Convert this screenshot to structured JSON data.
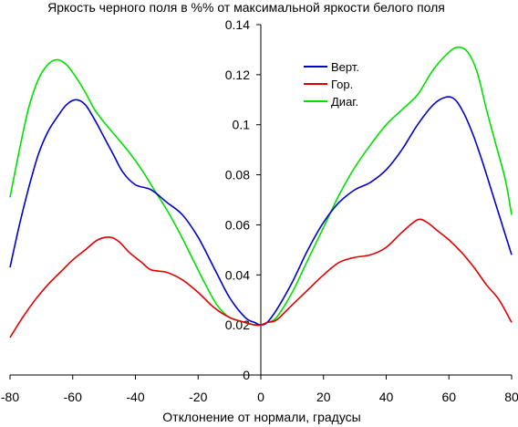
{
  "chart_data": {
    "type": "line",
    "title": "Яркость черного поля в %% от максимальной яркости белого поля",
    "xlabel": "Отклонение от нормали, градусы",
    "ylabel": "",
    "xlim": [
      -80,
      80
    ],
    "ylim": [
      0,
      0.14
    ],
    "xticks": [
      "-80",
      "-60",
      "-40",
      "-20",
      "0",
      "20",
      "40",
      "60",
      "80"
    ],
    "yticks": [
      "0",
      "0.02",
      "0.04",
      "0.06",
      "0.08",
      "0.1",
      "0.12",
      "0.14"
    ],
    "grid": false,
    "legend_position": "top-right",
    "series": [
      {
        "name": "Верт.",
        "color": "#0000cc",
        "x": [
          -80,
          -77,
          -74,
          -71,
          -68,
          -65,
          -62,
          -59,
          -56,
          -53,
          -50,
          -47,
          -44,
          -40,
          -35,
          -30,
          -25,
          -20,
          -15,
          -10,
          -5,
          -2,
          0,
          2,
          5,
          10,
          15,
          20,
          25,
          30,
          35,
          40,
          45,
          50,
          55,
          59,
          62,
          65,
          68,
          71,
          74,
          77,
          80
        ],
        "y": [
          0.043,
          0.06,
          0.075,
          0.088,
          0.097,
          0.103,
          0.108,
          0.11,
          0.108,
          0.102,
          0.095,
          0.088,
          0.081,
          0.076,
          0.074,
          0.069,
          0.064,
          0.055,
          0.043,
          0.031,
          0.023,
          0.021,
          0.02,
          0.021,
          0.026,
          0.037,
          0.05,
          0.061,
          0.069,
          0.074,
          0.077,
          0.082,
          0.09,
          0.1,
          0.108,
          0.111,
          0.11,
          0.104,
          0.095,
          0.084,
          0.072,
          0.06,
          0.048
        ]
      },
      {
        "name": "Гор.",
        "color": "#e00000",
        "x": [
          -80,
          -76,
          -72,
          -68,
          -64,
          -60,
          -56,
          -52,
          -48,
          -45,
          -42,
          -38,
          -35,
          -30,
          -25,
          -20,
          -15,
          -10,
          -5,
          -2,
          0,
          2,
          5,
          10,
          15,
          20,
          25,
          30,
          35,
          40,
          45,
          50,
          53,
          56,
          60,
          64,
          68,
          72,
          76,
          80
        ],
        "y": [
          0.015,
          0.023,
          0.03,
          0.036,
          0.041,
          0.046,
          0.05,
          0.054,
          0.055,
          0.053,
          0.049,
          0.045,
          0.042,
          0.041,
          0.038,
          0.033,
          0.027,
          0.023,
          0.021,
          0.02,
          0.02,
          0.021,
          0.022,
          0.028,
          0.034,
          0.04,
          0.045,
          0.047,
          0.048,
          0.051,
          0.057,
          0.062,
          0.061,
          0.058,
          0.054,
          0.049,
          0.043,
          0.036,
          0.03,
          0.021
        ]
      },
      {
        "name": "Диаг.",
        "color": "#00e000",
        "x": [
          -80,
          -77,
          -74,
          -71,
          -68,
          -65,
          -62,
          -59,
          -56,
          -53,
          -50,
          -46,
          -42,
          -38,
          -34,
          -30,
          -26,
          -22,
          -18,
          -14,
          -10,
          -5,
          -2,
          0,
          2,
          5,
          10,
          15,
          20,
          25,
          30,
          35,
          40,
          45,
          50,
          55,
          60,
          63,
          66,
          69,
          72,
          75,
          78,
          80
        ],
        "y": [
          0.071,
          0.09,
          0.107,
          0.118,
          0.124,
          0.126,
          0.124,
          0.119,
          0.113,
          0.106,
          0.101,
          0.095,
          0.089,
          0.082,
          0.074,
          0.066,
          0.057,
          0.047,
          0.037,
          0.028,
          0.023,
          0.021,
          0.02,
          0.02,
          0.021,
          0.023,
          0.033,
          0.046,
          0.059,
          0.072,
          0.083,
          0.092,
          0.1,
          0.106,
          0.112,
          0.122,
          0.129,
          0.131,
          0.129,
          0.121,
          0.106,
          0.092,
          0.078,
          0.064
        ]
      }
    ]
  }
}
